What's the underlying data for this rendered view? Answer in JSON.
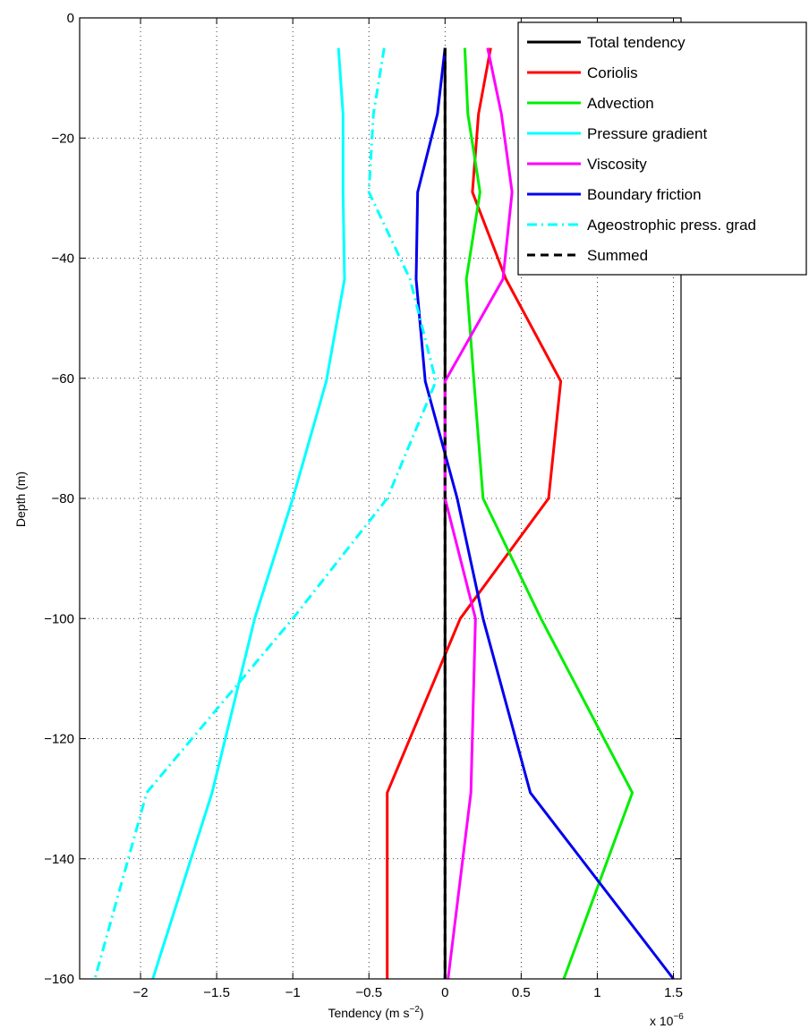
{
  "chart_data": {
    "type": "line",
    "title": "",
    "xlabel": "Tendency (m s",
    "xlabel_sup": "−2",
    "xlabel_close": ")",
    "ylabel": "Depth (m)",
    "x_exponent_base": "x 10",
    "x_exponent_power": "−6",
    "xlim": [
      -2.4,
      1.55
    ],
    "ylim": [
      -160,
      0
    ],
    "xticks": [
      -2,
      -1.5,
      -1,
      -0.5,
      0,
      0.5,
      1,
      1.5
    ],
    "xtick_labels": [
      "−2",
      "−1.5",
      "−1",
      "−0.5",
      "0",
      "0.5",
      "1",
      "1.5"
    ],
    "yticks": [
      0,
      -20,
      -40,
      -60,
      -80,
      -100,
      -120,
      -140,
      -160
    ],
    "ytick_labels": [
      "0",
      "−20",
      "−40",
      "−60",
      "−80",
      "−100",
      "−120",
      "−140",
      "−160"
    ],
    "grid": true,
    "legend_position": "top-right",
    "depths": [
      -5,
      -16,
      -29,
      -43.5,
      -60.5,
      -80,
      -100,
      -129,
      -160
    ],
    "series": [
      {
        "name": "Total tendency",
        "color": "#000000",
        "dash": "solid",
        "values": [
          0.0,
          0.0,
          0.0,
          0.0,
          0.0,
          0.0,
          0.0,
          0.0,
          0.0
        ]
      },
      {
        "name": "Coriolis",
        "color": "#ff0000",
        "dash": "solid",
        "values": [
          0.3,
          0.22,
          0.18,
          0.4,
          0.76,
          0.68,
          0.1,
          -0.38,
          -0.38
        ]
      },
      {
        "name": "Advection",
        "color": "#00ee00",
        "dash": "solid",
        "values": [
          0.13,
          0.15,
          0.23,
          0.14,
          0.19,
          0.25,
          0.63,
          1.23,
          0.78
        ]
      },
      {
        "name": "Pressure gradient",
        "color": "#00ffff",
        "dash": "solid",
        "values": [
          -0.7,
          -0.67,
          -0.67,
          -0.66,
          -0.78,
          -1.0,
          -1.25,
          -1.53,
          -1.92
        ]
      },
      {
        "name": "Viscosity",
        "color": "#ff00ff",
        "dash": "solid",
        "values": [
          0.28,
          0.37,
          0.44,
          0.38,
          0.0,
          0.0,
          0.2,
          0.17,
          0.02
        ]
      },
      {
        "name": "Boundary friction",
        "color": "#0000ee",
        "dash": "solid",
        "values": [
          0.0,
          -0.05,
          -0.18,
          -0.19,
          -0.13,
          0.08,
          0.25,
          0.56,
          1.5
        ]
      },
      {
        "name": "Ageostrophic press. grad",
        "color": "#00ffff",
        "dash": "dashdot",
        "values": [
          -0.4,
          -0.47,
          -0.5,
          -0.23,
          -0.06,
          -0.38,
          -1.0,
          -1.96,
          -2.3
        ]
      },
      {
        "name": "Summed",
        "color": "#000000",
        "dash": "dashed",
        "values": [
          0.0,
          0.0,
          0.0,
          0.0,
          0.0,
          0.0,
          0.0,
          0.0,
          0.0
        ]
      }
    ]
  }
}
